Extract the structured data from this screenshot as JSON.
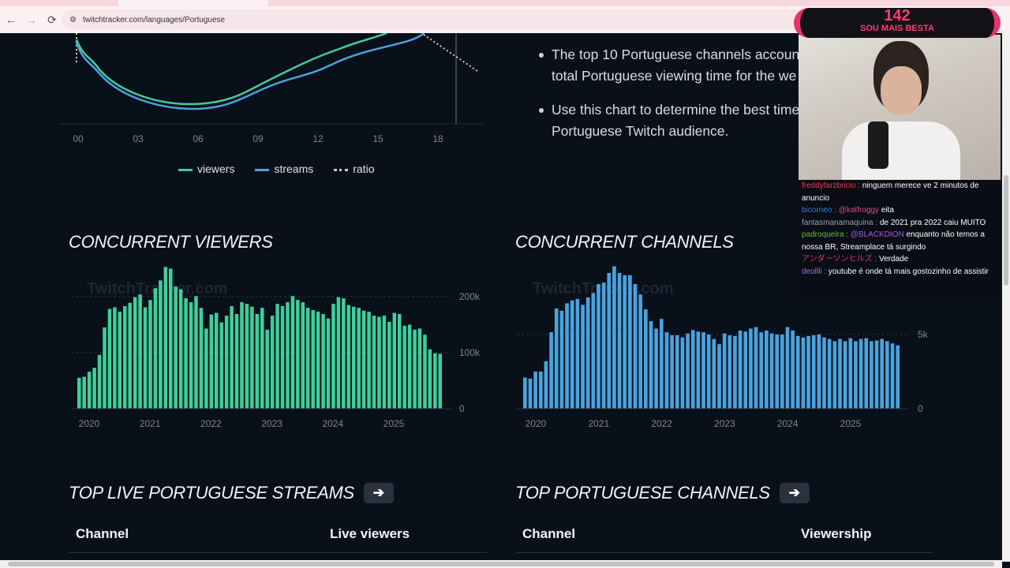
{
  "browser": {
    "url": "twitchtracker.com/languages/Portuguese",
    "back": "←",
    "forward": "→",
    "reload": "⟳",
    "site_info": "⚙"
  },
  "hourly_chart": {
    "x_ticks": [
      "00",
      "03",
      "06",
      "09",
      "12",
      "15",
      "18"
    ],
    "legend": [
      {
        "label": "viewers",
        "color": "#3ecf9a"
      },
      {
        "label": "streams",
        "color": "#4aa3df"
      },
      {
        "label": "ratio",
        "color": "#c8ccd2"
      }
    ]
  },
  "bullets": [
    "The top 10 Portuguese channels account",
    "total Portuguese viewing time for the we",
    "Use this chart to determine the best time",
    "Portuguese Twitch audience."
  ],
  "chart_data": [
    {
      "type": "bar",
      "title": "CONCURRENT VIEWERS",
      "watermark": "TwitchTracker.com",
      "color": "#3ecf9a",
      "y_ticks": [
        "0",
        "100k",
        "200k"
      ],
      "ylim": [
        0,
        260000
      ],
      "x_ticks": [
        "2020",
        "2021",
        "2022",
        "2023",
        "2024",
        "2025"
      ],
      "values": [
        55,
        57,
        66,
        73,
        96,
        145,
        178,
        181,
        173,
        183,
        189,
        199,
        204,
        181,
        194,
        215,
        229,
        253,
        250,
        218,
        213,
        197,
        190,
        201,
        180,
        143,
        168,
        171,
        154,
        166,
        183,
        169,
        190,
        187,
        182,
        169,
        180,
        141,
        166,
        187,
        183,
        190,
        201,
        194,
        190,
        180,
        176,
        173,
        169,
        161,
        187,
        199,
        197,
        185,
        182,
        180,
        175,
        173,
        166,
        164,
        166,
        155,
        171,
        169,
        148,
        150,
        141,
        143,
        132,
        106,
        99,
        98
      ],
      "unit": "thousand viewers"
    },
    {
      "type": "bar",
      "title": "CONCURRENT CHANNELS",
      "watermark": "TwitchTracker.com",
      "color": "#4aa3df",
      "y_ticks": [
        "0",
        "5k"
      ],
      "ylim": [
        0,
        10000
      ],
      "x_ticks": [
        "2020",
        "2021",
        "2022",
        "2023",
        "2024",
        "2025"
      ],
      "values": [
        2.1,
        2.03,
        2.5,
        2.5,
        3.2,
        5.15,
        6.75,
        6.6,
        7.1,
        7.3,
        7.4,
        7.0,
        7.5,
        7.8,
        8.4,
        8.5,
        9.15,
        9.6,
        9.15,
        9.0,
        9.0,
        8.4,
        7.7,
        6.7,
        5.9,
        5.4,
        6.05,
        5.15,
        4.95,
        4.95,
        4.8,
        5.07,
        5.3,
        5.2,
        5.15,
        5.0,
        4.7,
        4.35,
        5.07,
        4.95,
        4.9,
        5.27,
        5.2,
        5.4,
        5.5,
        5.15,
        5.27,
        5.07,
        5.0,
        5.0,
        5.5,
        5.27,
        4.9,
        4.8,
        4.9,
        4.95,
        5.0,
        4.8,
        4.7,
        4.55,
        4.7,
        4.55,
        4.75,
        4.55,
        4.7,
        4.75,
        4.55,
        4.6,
        4.7,
        4.55,
        4.4,
        4.27
      ],
      "unit": "thousand channels"
    }
  ],
  "sections": {
    "streams_title": "TOP LIVE PORTUGUESE STREAMS",
    "channels_title": "TOP PORTUGUESE CHANNELS",
    "arrow": "➔",
    "streams_cols": [
      "Channel",
      "Live viewers"
    ],
    "channels_cols": [
      "Channel",
      "Viewership"
    ]
  },
  "overlay": {
    "number": "142",
    "subtitle": "SOU MAIS BESTA"
  },
  "chat": [
    {
      "user": "freddyfarzbricio",
      "color": "#e0424e",
      "msg": "ninguem merece ve 2 minutos de anuncio"
    },
    {
      "user": "bicorneo",
      "color": "#3a7bd5",
      "msg": "@katfroggy eita",
      "mention": "@katfroggy"
    },
    {
      "user": "fantasmanamaquina",
      "color": "#9aa0a8",
      "msg": "de 2021 pra 2022 caiu MUITO"
    },
    {
      "user": "padroqueira",
      "color": "#57c23a",
      "msg": "enquanto não temos a nossa BR, Streamplace tá surgindo",
      "mention": "@BLACKDION"
    },
    {
      "user": "アンダーソンヒルズ",
      "color": "#d6336c",
      "msg": "Verdade"
    },
    {
      "user": "deollli",
      "color": "#a26fe0",
      "msg": "youtube é onde tá mais gostozinho de assistir"
    }
  ]
}
